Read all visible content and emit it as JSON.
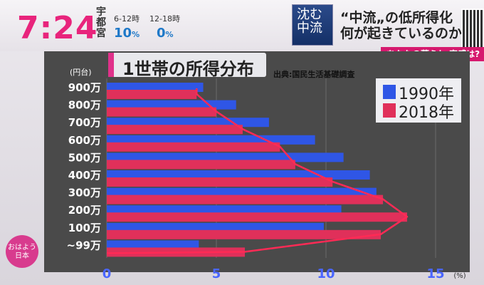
{
  "header": {
    "clock": "7:24",
    "city": "宇都宮",
    "rain_label_1": "6-12時",
    "rain_label_2": "12-18時",
    "rain_value_1": "10",
    "rain_value_2": "0",
    "rain_unit": "%",
    "feature_box": "沈む中流",
    "headline_line1": "“中流„の低所得化",
    "headline_line2": "何が起きているのか",
    "subbar": "あなたの暮らし 実感は?"
  },
  "logo": {
    "text": "おはよう日本"
  },
  "colors": {
    "blue": "#2f56e6",
    "red": "#e0305a",
    "accent": "#e8247c"
  },
  "chart_data": {
    "type": "bar",
    "orientation": "horizontal",
    "title": "1世帯の所得分布",
    "source": "出典:国民生活基礎調査",
    "y_unit": "(円台)",
    "x_unit": "(%)",
    "categories": [
      "900万",
      "800万",
      "700万",
      "600万",
      "500万",
      "400万",
      "300万",
      "200万",
      "100万",
      "~99万"
    ],
    "series": [
      {
        "name": "1990年",
        "values": [
          4.4,
          5.9,
          7.4,
          9.5,
          10.8,
          12.0,
          12.3,
          10.7,
          9.9,
          4.2
        ]
      },
      {
        "name": "2018年",
        "values": [
          4.1,
          5.0,
          6.2,
          7.9,
          8.6,
          10.3,
          12.6,
          13.7,
          12.5,
          6.3
        ]
      }
    ],
    "x_ticks": [
      "0",
      "5",
      "10",
      "15"
    ],
    "xlim": [
      0,
      15
    ],
    "legend": "top-right",
    "annotation": "2018年 distribution outline"
  }
}
